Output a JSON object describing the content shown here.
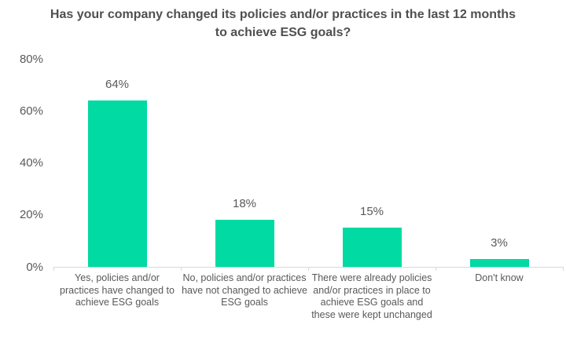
{
  "colors": {
    "bar": "#02DAA3",
    "title_text": "#4f4f4f",
    "axis_text": "#595959",
    "axis_line": "#D9D9D9",
    "background": "#FFFFFF"
  },
  "chart_data": {
    "type": "bar",
    "title": "Has your company changed its policies and/or practices in the last 12 months to achieve ESG goals?",
    "categories": [
      "Yes, policies and/or practices have changed to achieve ESG goals",
      "No, policies and/or practices have not changed to achieve ESG goals",
      "There were already policies and/or practices in place to achieve ESG goals and these were kept unchanged",
      "Don't know"
    ],
    "values": [
      64,
      18,
      15,
      3
    ],
    "value_labels": [
      "64%",
      "18%",
      "15%",
      "3%"
    ],
    "xlabel": "",
    "ylabel": "",
    "ylim": [
      0,
      80
    ],
    "yticks": [
      {
        "value": 0,
        "label": "0%"
      },
      {
        "value": 20,
        "label": "20%"
      },
      {
        "value": 40,
        "label": "40%"
      },
      {
        "value": 60,
        "label": "60%"
      },
      {
        "value": 80,
        "label": "80%"
      }
    ],
    "grid": false,
    "legend": false,
    "bar_color": "#02DAA3"
  }
}
